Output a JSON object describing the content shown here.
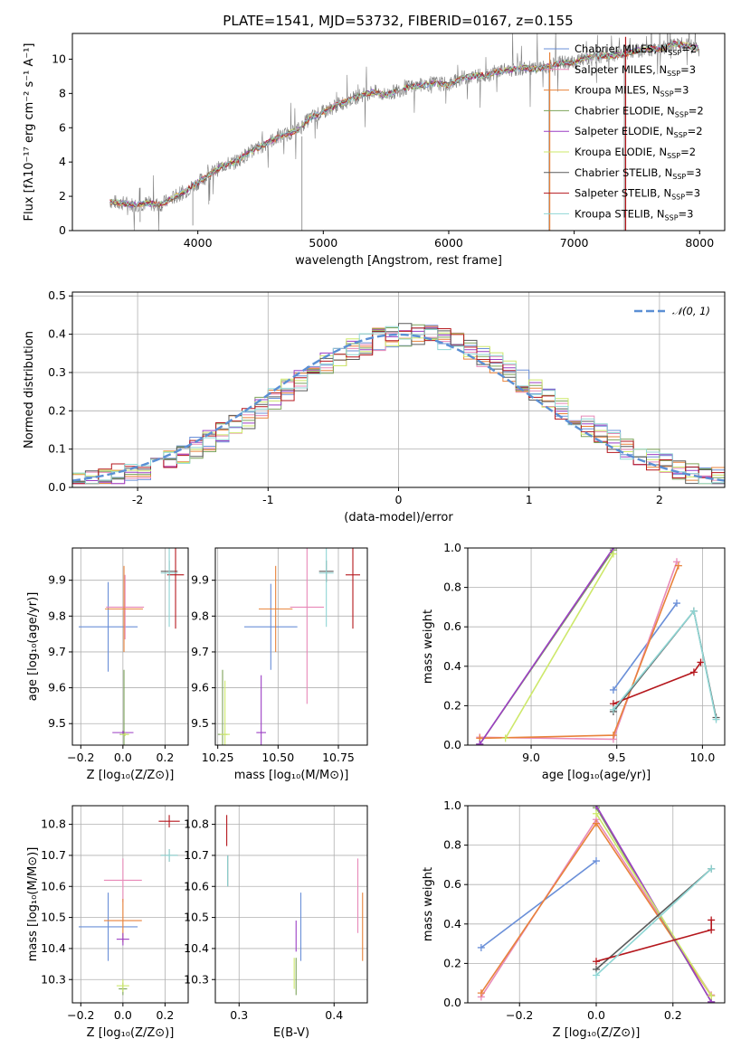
{
  "page_title": "PLATE=1541, MJD=53732, FIBERID=0167, z=0.155",
  "colors": {
    "chabrier_miles": "#6a8fd8",
    "salpeter_miles": "#e889b8",
    "kroupa_miles": "#e8823a",
    "chabrier_elodie": "#7da35a",
    "salpeter_elodie": "#9b3ec4",
    "kroupa_elodie": "#cde86a",
    "chabrier_stelib": "#5a5a5a",
    "salpeter_stelib": "#b5171d",
    "kroupa_stelib": "#8fd6d4",
    "data": "#7f7f7f",
    "gaussian": "#5b8fd4"
  },
  "chart_data": [
    {
      "id": "spectrum",
      "type": "line",
      "title": "PLATE=1541, MJD=53732, FIBERID=0167, z=0.155",
      "xlabel": "wavelength [Angstrom, rest frame]",
      "ylabel": "Flux [fλ10⁻¹⁷ erg cm⁻² s⁻¹ A⁻¹]",
      "xlim": [
        3000,
        8200
      ],
      "ylim": [
        0,
        11.5
      ],
      "xticks": [
        "4000",
        "5000",
        "6000",
        "7000",
        "8000"
      ],
      "yticks": [
        "0",
        "2",
        "4",
        "6",
        "8",
        "10"
      ],
      "grid": false,
      "legend_position": "top-right",
      "legend": [
        "Chabrier MILES, N_SSP=2",
        "Salpeter MILES, N_SSP=3",
        "Kroupa MILES, N_SSP=3",
        "Chabrier ELODIE, N_SSP=2",
        "Salpeter ELODIE, N_SSP=2",
        "Kroupa ELODIE, N_SSP=2",
        "Chabrier STELIB, N_SSP=3",
        "Salpeter STELIB, N_SSP=3",
        "Kroupa STELIB, N_SSP=3"
      ],
      "continuum": {
        "x": [
          3300,
          3400,
          3500,
          3600,
          3700,
          3800,
          3900,
          4000,
          4100,
          4200,
          4300,
          4400,
          4500,
          4600,
          4700,
          4800,
          4900,
          5000,
          5100,
          5200,
          5300,
          5400,
          5500,
          5600,
          5700,
          5800,
          5900,
          6000,
          6100,
          6200,
          6300,
          6400,
          6500,
          6600,
          6700,
          6800,
          6900,
          7000,
          7100,
          7200,
          7300,
          7400,
          7500,
          7600,
          7700,
          7800,
          7900,
          8000
        ],
        "y": [
          1.7,
          1.6,
          1.5,
          1.6,
          1.5,
          1.9,
          2.3,
          2.8,
          3.3,
          3.8,
          4.0,
          4.5,
          4.9,
          5.3,
          5.6,
          5.9,
          6.6,
          6.9,
          7.3,
          7.6,
          7.9,
          8.1,
          7.9,
          8.2,
          8.4,
          8.5,
          8.6,
          8.5,
          8.9,
          9.0,
          9.1,
          9.3,
          9.4,
          9.5,
          9.4,
          9.6,
          9.8,
          9.8,
          10.1,
          10.2,
          10.2,
          10.3,
          10.5,
          10.6,
          10.6,
          10.9,
          10.8,
          10.6
        ]
      }
    },
    {
      "id": "residuals",
      "type": "line",
      "xlabel": "(data-model)/error",
      "ylabel": "Normed distribution",
      "xlim": [
        -2.5,
        2.5
      ],
      "ylim": [
        0,
        0.51
      ],
      "xticks": [
        -2,
        -1,
        0,
        1,
        2
      ],
      "yticks": [
        0.0,
        0.1,
        0.2,
        0.3,
        0.4,
        0.5
      ],
      "grid": true,
      "legend_position": "top-right",
      "legend": [
        "𝒩(0, 1)"
      ],
      "gaussian": {
        "mean": 0,
        "std": 1
      }
    },
    {
      "id": "age-vs-z",
      "type": "scatter",
      "xlabel": "Z [log₁₀(Z/Z⊙)]",
      "ylabel": "age  [log₁₀(age/yr)]",
      "xlim": [
        -0.24,
        0.31
      ],
      "ylim": [
        9.44,
        9.99
      ],
      "xticks": [
        "−0.2",
        "0.0",
        "0.2"
      ],
      "yticks": [
        "9.5",
        "9.6",
        "9.7",
        "9.8",
        "9.9"
      ],
      "grid": true,
      "points": [
        {
          "model": "chabrier_miles",
          "x": -0.07,
          "y": 9.77,
          "xerr": 0.14,
          "yerr": 0.125
        },
        {
          "model": "salpeter_miles",
          "x": 0.01,
          "y": 9.825,
          "xerr": 0.09,
          "yerr": 0.09
        },
        {
          "model": "kroupa_miles",
          "x": 0.005,
          "y": 9.82,
          "xerr": 0.09,
          "yerr": 0.12
        },
        {
          "model": "chabrier_elodie",
          "x": 0.005,
          "y": 9.47,
          "xerr": 0.02,
          "yerr": 0.18
        },
        {
          "model": "salpeter_elodie",
          "x": 0.0,
          "y": 9.475,
          "xerr": 0.05,
          "yerr": 0.005
        },
        {
          "model": "kroupa_elodie",
          "x": 0.01,
          "y": 9.47,
          "xerr": 0.02,
          "yerr": 0.005
        },
        {
          "model": "chabrier_stelib",
          "x": 0.22,
          "y": 9.925,
          "xerr": 0.04,
          "yerr": 0.03
        },
        {
          "model": "salpeter_stelib",
          "x": 0.25,
          "y": 9.915,
          "xerr": 0.04,
          "yerr": 0.15
        },
        {
          "model": "kroupa_stelib",
          "x": 0.22,
          "y": 9.92,
          "xerr": 0.04,
          "yerr": 0.15
        }
      ]
    },
    {
      "id": "age-vs-mass",
      "type": "scatter",
      "xlabel": "mass [log₁₀(M/M⊙)]",
      "ylabel": "",
      "xlim": [
        10.24,
        10.87
      ],
      "ylim": [
        9.44,
        9.99
      ],
      "xticks": [
        "10.25",
        "10.50",
        "10.75"
      ],
      "yticks": [
        "9.5",
        "9.6",
        "9.7",
        "9.8",
        "9.9"
      ],
      "grid": true,
      "points": [
        {
          "model": "chabrier_miles",
          "x": 10.47,
          "y": 9.77,
          "xerr": 0.11,
          "yerr": 0.12
        },
        {
          "model": "salpeter_miles",
          "x": 10.62,
          "y": 9.825,
          "xerr": 0.07,
          "yerr": 0.27
        },
        {
          "model": "kroupa_miles",
          "x": 10.49,
          "y": 9.82,
          "xerr": 0.07,
          "yerr": 0.12
        },
        {
          "model": "chabrier_elodie",
          "x": 10.27,
          "y": 9.47,
          "xerr": 0.02,
          "yerr": 0.18
        },
        {
          "model": "salpeter_elodie",
          "x": 10.43,
          "y": 9.475,
          "xerr": 0.02,
          "yerr": 0.16
        },
        {
          "model": "kroupa_elodie",
          "x": 10.28,
          "y": 9.47,
          "xerr": 0.02,
          "yerr": 0.15
        },
        {
          "model": "chabrier_stelib",
          "x": 10.7,
          "y": 9.925,
          "xerr": 0.03,
          "yerr": 0.03
        },
        {
          "model": "salpeter_stelib",
          "x": 10.81,
          "y": 9.915,
          "xerr": 0.03,
          "yerr": 0.15
        },
        {
          "model": "kroupa_stelib",
          "x": 10.7,
          "y": 9.92,
          "xerr": 0.03,
          "yerr": 0.15
        }
      ]
    },
    {
      "id": "weight-vs-age",
      "type": "line",
      "xlabel": "age  [log₁₀(age/yr)]",
      "ylabel": "mass weight",
      "xlim": [
        8.63,
        10.13
      ],
      "ylim": [
        0.0,
        1.0
      ],
      "xticks": [
        "9.0",
        "9.5",
        "10.0"
      ],
      "yticks": [
        "0.0",
        "0.2",
        "0.4",
        "0.6",
        "0.8",
        "1.0"
      ],
      "grid": true,
      "series": [
        {
          "model": "chabrier_miles",
          "x": [
            9.48,
            9.85
          ],
          "y": [
            0.28,
            0.72
          ]
        },
        {
          "model": "salpeter_miles",
          "x": [
            8.7,
            9.48,
            9.85
          ],
          "y": [
            0.04,
            0.03,
            0.93
          ]
        },
        {
          "model": "kroupa_miles",
          "x": [
            8.7,
            9.48,
            9.86
          ],
          "y": [
            0.035,
            0.05,
            0.91
          ]
        },
        {
          "model": "chabrier_elodie",
          "x": [
            8.7,
            9.48
          ],
          "y": [
            0.005,
            0.99
          ]
        },
        {
          "model": "salpeter_elodie",
          "x": [
            8.7,
            9.48
          ],
          "y": [
            0.005,
            1.0
          ]
        },
        {
          "model": "kroupa_elodie",
          "x": [
            8.85,
            9.48
          ],
          "y": [
            0.035,
            0.97
          ]
        },
        {
          "model": "chabrier_stelib",
          "x": [
            9.48,
            9.95,
            10.08
          ],
          "y": [
            0.17,
            0.68,
            0.14
          ]
        },
        {
          "model": "salpeter_stelib",
          "x": [
            9.48,
            9.95,
            9.99
          ],
          "y": [
            0.21,
            0.37,
            0.42
          ]
        },
        {
          "model": "kroupa_stelib",
          "x": [
            9.48,
            9.95,
            10.08
          ],
          "y": [
            0.18,
            0.68,
            0.13
          ]
        }
      ]
    },
    {
      "id": "mass-vs-z",
      "type": "scatter",
      "xlabel": "Z [log₁₀(Z/Z⊙)]",
      "ylabel": "mass [log₁₀(M/M⊙)]",
      "xlim": [
        -0.24,
        0.31
      ],
      "ylim": [
        10.225,
        10.86
      ],
      "xticks": [
        "−0.2",
        "0.0",
        "0.2"
      ],
      "yticks": [
        "10.3",
        "10.4",
        "10.5",
        "10.6",
        "10.7",
        "10.8"
      ],
      "grid": true,
      "points": [
        {
          "model": "chabrier_miles",
          "x": -0.07,
          "y": 10.47,
          "xerr": 0.14,
          "yerr": 0.11
        },
        {
          "model": "salpeter_miles",
          "x": 0.0,
          "y": 10.62,
          "xerr": 0.09,
          "yerr": 0.07
        },
        {
          "model": "kroupa_miles",
          "x": 0.0,
          "y": 10.49,
          "xerr": 0.09,
          "yerr": 0.07
        },
        {
          "model": "chabrier_elodie",
          "x": 0.0,
          "y": 10.27,
          "xerr": 0.02,
          "yerr": 0.02
        },
        {
          "model": "salpeter_elodie",
          "x": 0.0,
          "y": 10.43,
          "xerr": 0.03,
          "yerr": 0.02
        },
        {
          "model": "kroupa_elodie",
          "x": 0.0,
          "y": 10.28,
          "xerr": 0.03,
          "yerr": 0.02
        },
        {
          "model": "chabrier_stelib",
          "x": 0.22,
          "y": 10.7,
          "xerr": 0.04,
          "yerr": 0.02
        },
        {
          "model": "salpeter_stelib",
          "x": 0.22,
          "y": 10.81,
          "xerr": 0.05,
          "yerr": 0.02
        },
        {
          "model": "kroupa_stelib",
          "x": 0.22,
          "y": 10.7,
          "xerr": 0.04,
          "yerr": 0.02
        }
      ]
    },
    {
      "id": "mass-vs-ebv",
      "type": "scatter",
      "xlabel": "E(B-V)",
      "ylabel": "",
      "xlim": [
        0.275,
        0.435
      ],
      "ylim": [
        10.225,
        10.86
      ],
      "xticks": [
        "0.3",
        "0.4"
      ],
      "yticks": [
        "10.3",
        "10.4",
        "10.5",
        "10.6",
        "10.7",
        "10.8"
      ],
      "grid": true,
      "points": [
        {
          "model": "chabrier_miles",
          "x": 0.365,
          "y": 10.47,
          "yerr": 0.11
        },
        {
          "model": "salpeter_miles",
          "x": 0.425,
          "y": 10.57,
          "yerr": 0.12
        },
        {
          "model": "kroupa_miles",
          "x": 0.43,
          "y": 10.47,
          "yerr": 0.11
        },
        {
          "model": "chabrier_elodie",
          "x": 0.36,
          "y": 10.31,
          "yerr": 0.06
        },
        {
          "model": "salpeter_elodie",
          "x": 0.36,
          "y": 10.44,
          "yerr": 0.05
        },
        {
          "model": "kroupa_elodie",
          "x": 0.358,
          "y": 10.32,
          "yerr": 0.05
        },
        {
          "model": "chabrier_stelib",
          "x": 0.288,
          "y": 10.65,
          "yerr": 0.05
        },
        {
          "model": "salpeter_stelib",
          "x": 0.287,
          "y": 10.78,
          "yerr": 0.05
        },
        {
          "model": "kroupa_stelib",
          "x": 0.288,
          "y": 10.65,
          "yerr": 0.05
        }
      ]
    },
    {
      "id": "weight-vs-z",
      "type": "line",
      "xlabel": "Z [log₁₀(Z/Z⊙)]",
      "ylabel": "mass weight",
      "xlim": [
        -0.335,
        0.335
      ],
      "ylim": [
        0.0,
        1.0
      ],
      "xticks": [
        "−0.2",
        "0.0",
        "0.2"
      ],
      "yticks": [
        "0.0",
        "0.2",
        "0.4",
        "0.6",
        "0.8",
        "1.0"
      ],
      "grid": true,
      "series": [
        {
          "model": "chabrier_miles",
          "x": [
            -0.3,
            0.0
          ],
          "y": [
            0.28,
            0.72
          ]
        },
        {
          "model": "salpeter_miles",
          "x": [
            -0.3,
            0.0,
            0.3
          ],
          "y": [
            0.03,
            0.93,
            0.04
          ]
        },
        {
          "model": "kroupa_miles",
          "x": [
            -0.3,
            0.0,
            0.3
          ],
          "y": [
            0.05,
            0.91,
            0.035
          ]
        },
        {
          "model": "chabrier_elodie",
          "x": [
            0.0,
            0.3
          ],
          "y": [
            0.99,
            0.005
          ]
        },
        {
          "model": "salpeter_elodie",
          "x": [
            0.0,
            0.3
          ],
          "y": [
            1.0,
            0.005
          ]
        },
        {
          "model": "kroupa_elodie",
          "x": [
            0.0,
            0.3
          ],
          "y": [
            0.96,
            0.035
          ]
        },
        {
          "model": "chabrier_stelib",
          "x": [
            0.0,
            0.3
          ],
          "y": [
            0.17,
            0.68
          ]
        },
        {
          "model": "salpeter_stelib",
          "x": [
            0.0,
            0.3,
            0.3
          ],
          "y": [
            0.21,
            0.37,
            0.42
          ]
        },
        {
          "model": "kroupa_stelib",
          "x": [
            0.0,
            0.3
          ],
          "y": [
            0.14,
            0.68
          ]
        }
      ]
    }
  ]
}
